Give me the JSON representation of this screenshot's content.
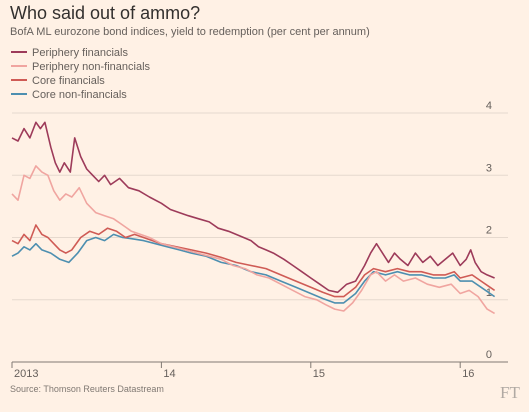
{
  "colors": {
    "periphery_financials": "#9d3b5a",
    "periphery_non_financials": "#f0a5a0",
    "core_financials": "#cf5b55",
    "core_non_financials": "#4d8fb0"
  },
  "chart_data": {
    "type": "line",
    "title": "Who said out of ammo?",
    "subtitle": "BofA ML eurozone bond indices, yield to redemption (per cent per annum)",
    "xlabel": "",
    "ylabel": "",
    "ylim": [
      0,
      4
    ],
    "xlim": [
      2013.0,
      2016.32
    ],
    "x_ticks": [
      {
        "value": 2013.0,
        "label": "2013"
      },
      {
        "value": 2014.0,
        "label": "14"
      },
      {
        "value": 2015.0,
        "label": "15"
      },
      {
        "value": 2016.0,
        "label": "16"
      }
    ],
    "y_ticks": [
      0,
      1,
      2,
      3,
      4
    ],
    "grid": true,
    "legend": "top-left",
    "source": "Source: Thomson Reuters Datastream",
    "brand": "FT",
    "series": [
      {
        "name": "Periphery financials",
        "color": "#9d3b5a",
        "points": [
          [
            2013.0,
            3.6
          ],
          [
            2013.04,
            3.55
          ],
          [
            2013.08,
            3.75
          ],
          [
            2013.12,
            3.6
          ],
          [
            2013.16,
            3.85
          ],
          [
            2013.19,
            3.75
          ],
          [
            2013.22,
            3.85
          ],
          [
            2013.26,
            3.45
          ],
          [
            2013.29,
            3.2
          ],
          [
            2013.32,
            3.05
          ],
          [
            2013.35,
            3.2
          ],
          [
            2013.39,
            3.05
          ],
          [
            2013.42,
            3.6
          ],
          [
            2013.46,
            3.3
          ],
          [
            2013.5,
            3.1
          ],
          [
            2013.54,
            3.0
          ],
          [
            2013.58,
            2.9
          ],
          [
            2013.62,
            3.0
          ],
          [
            2013.66,
            2.85
          ],
          [
            2013.72,
            2.95
          ],
          [
            2013.78,
            2.8
          ],
          [
            2013.85,
            2.75
          ],
          [
            2013.92,
            2.65
          ],
          [
            2014.0,
            2.55
          ],
          [
            2014.06,
            2.45
          ],
          [
            2014.12,
            2.4
          ],
          [
            2014.18,
            2.35
          ],
          [
            2014.25,
            2.3
          ],
          [
            2014.32,
            2.25
          ],
          [
            2014.38,
            2.15
          ],
          [
            2014.45,
            2.1
          ],
          [
            2014.5,
            2.05
          ],
          [
            2014.55,
            2.0
          ],
          [
            2014.6,
            1.95
          ],
          [
            2014.65,
            1.85
          ],
          [
            2014.7,
            1.8
          ],
          [
            2014.75,
            1.75
          ],
          [
            2014.82,
            1.65
          ],
          [
            2014.88,
            1.55
          ],
          [
            2014.94,
            1.45
          ],
          [
            2015.0,
            1.35
          ],
          [
            2015.06,
            1.25
          ],
          [
            2015.12,
            1.15
          ],
          [
            2015.18,
            1.12
          ],
          [
            2015.24,
            1.25
          ],
          [
            2015.3,
            1.3
          ],
          [
            2015.36,
            1.55
          ],
          [
            2015.4,
            1.75
          ],
          [
            2015.44,
            1.9
          ],
          [
            2015.48,
            1.75
          ],
          [
            2015.52,
            1.6
          ],
          [
            2015.56,
            1.75
          ],
          [
            2015.6,
            1.65
          ],
          [
            2015.65,
            1.55
          ],
          [
            2015.7,
            1.75
          ],
          [
            2015.75,
            1.6
          ],
          [
            2015.8,
            1.7
          ],
          [
            2015.85,
            1.55
          ],
          [
            2015.9,
            1.65
          ],
          [
            2015.95,
            1.75
          ],
          [
            2016.0,
            1.55
          ],
          [
            2016.04,
            1.65
          ],
          [
            2016.07,
            1.8
          ],
          [
            2016.1,
            1.6
          ],
          [
            2016.14,
            1.45
          ],
          [
            2016.18,
            1.4
          ],
          [
            2016.23,
            1.35
          ]
        ]
      },
      {
        "name": "Periphery non-financials",
        "color": "#f0a5a0",
        "points": [
          [
            2013.0,
            2.7
          ],
          [
            2013.04,
            2.6
          ],
          [
            2013.08,
            3.0
          ],
          [
            2013.12,
            2.95
          ],
          [
            2013.16,
            3.15
          ],
          [
            2013.2,
            3.05
          ],
          [
            2013.24,
            3.0
          ],
          [
            2013.28,
            2.75
          ],
          [
            2013.32,
            2.6
          ],
          [
            2013.36,
            2.7
          ],
          [
            2013.4,
            2.65
          ],
          [
            2013.45,
            2.8
          ],
          [
            2013.5,
            2.55
          ],
          [
            2013.56,
            2.4
          ],
          [
            2013.62,
            2.35
          ],
          [
            2013.68,
            2.3
          ],
          [
            2013.74,
            2.2
          ],
          [
            2013.8,
            2.1
          ],
          [
            2013.86,
            2.05
          ],
          [
            2013.92,
            2.0
          ],
          [
            2014.0,
            1.9
          ],
          [
            2014.08,
            1.85
          ],
          [
            2014.16,
            1.8
          ],
          [
            2014.24,
            1.75
          ],
          [
            2014.32,
            1.7
          ],
          [
            2014.4,
            1.65
          ],
          [
            2014.48,
            1.55
          ],
          [
            2014.56,
            1.5
          ],
          [
            2014.64,
            1.4
          ],
          [
            2014.72,
            1.35
          ],
          [
            2014.8,
            1.25
          ],
          [
            2014.88,
            1.15
          ],
          [
            2014.96,
            1.05
          ],
          [
            2015.04,
            1.0
          ],
          [
            2015.1,
            0.92
          ],
          [
            2015.16,
            0.85
          ],
          [
            2015.22,
            0.82
          ],
          [
            2015.28,
            0.95
          ],
          [
            2015.34,
            1.15
          ],
          [
            2015.4,
            1.4
          ],
          [
            2015.44,
            1.45
          ],
          [
            2015.5,
            1.3
          ],
          [
            2015.56,
            1.4
          ],
          [
            2015.62,
            1.3
          ],
          [
            2015.7,
            1.35
          ],
          [
            2015.78,
            1.25
          ],
          [
            2015.86,
            1.2
          ],
          [
            2015.94,
            1.25
          ],
          [
            2016.0,
            1.1
          ],
          [
            2016.06,
            1.15
          ],
          [
            2016.12,
            1.05
          ],
          [
            2016.18,
            0.85
          ],
          [
            2016.23,
            0.78
          ]
        ]
      },
      {
        "name": "Core financials",
        "color": "#cf5b55",
        "points": [
          [
            2013.0,
            1.95
          ],
          [
            2013.04,
            1.9
          ],
          [
            2013.08,
            2.05
          ],
          [
            2013.12,
            1.95
          ],
          [
            2013.16,
            2.2
          ],
          [
            2013.2,
            2.05
          ],
          [
            2013.24,
            2.0
          ],
          [
            2013.28,
            1.9
          ],
          [
            2013.32,
            1.8
          ],
          [
            2013.36,
            1.75
          ],
          [
            2013.4,
            1.8
          ],
          [
            2013.46,
            2.0
          ],
          [
            2013.52,
            2.1
          ],
          [
            2013.58,
            2.05
          ],
          [
            2013.64,
            2.15
          ],
          [
            2013.7,
            2.1
          ],
          [
            2013.76,
            2.0
          ],
          [
            2013.82,
            2.05
          ],
          [
            2013.88,
            2.0
          ],
          [
            2013.94,
            1.95
          ],
          [
            2014.0,
            1.9
          ],
          [
            2014.1,
            1.85
          ],
          [
            2014.2,
            1.8
          ],
          [
            2014.3,
            1.75
          ],
          [
            2014.4,
            1.68
          ],
          [
            2014.5,
            1.6
          ],
          [
            2014.6,
            1.55
          ],
          [
            2014.7,
            1.5
          ],
          [
            2014.8,
            1.4
          ],
          [
            2014.9,
            1.3
          ],
          [
            2015.0,
            1.2
          ],
          [
            2015.08,
            1.12
          ],
          [
            2015.16,
            1.05
          ],
          [
            2015.22,
            1.05
          ],
          [
            2015.3,
            1.2
          ],
          [
            2015.36,
            1.4
          ],
          [
            2015.42,
            1.5
          ],
          [
            2015.5,
            1.45
          ],
          [
            2015.58,
            1.5
          ],
          [
            2015.66,
            1.45
          ],
          [
            2015.74,
            1.45
          ],
          [
            2015.82,
            1.4
          ],
          [
            2015.9,
            1.4
          ],
          [
            2015.96,
            1.45
          ],
          [
            2016.0,
            1.35
          ],
          [
            2016.08,
            1.4
          ],
          [
            2016.14,
            1.3
          ],
          [
            2016.2,
            1.2
          ],
          [
            2016.23,
            1.15
          ]
        ]
      },
      {
        "name": "Core non-financials",
        "color": "#4d8fb0",
        "points": [
          [
            2013.0,
            1.7
          ],
          [
            2013.04,
            1.75
          ],
          [
            2013.08,
            1.85
          ],
          [
            2013.12,
            1.8
          ],
          [
            2013.16,
            1.9
          ],
          [
            2013.2,
            1.8
          ],
          [
            2013.26,
            1.75
          ],
          [
            2013.32,
            1.65
          ],
          [
            2013.38,
            1.6
          ],
          [
            2013.44,
            1.75
          ],
          [
            2013.5,
            1.95
          ],
          [
            2013.56,
            2.0
          ],
          [
            2013.62,
            1.95
          ],
          [
            2013.68,
            2.05
          ],
          [
            2013.74,
            2.0
          ],
          [
            2013.8,
            1.98
          ],
          [
            2013.88,
            1.95
          ],
          [
            2013.96,
            1.9
          ],
          [
            2014.04,
            1.85
          ],
          [
            2014.12,
            1.8
          ],
          [
            2014.2,
            1.75
          ],
          [
            2014.3,
            1.7
          ],
          [
            2014.4,
            1.6
          ],
          [
            2014.5,
            1.55
          ],
          [
            2014.6,
            1.45
          ],
          [
            2014.7,
            1.4
          ],
          [
            2014.8,
            1.3
          ],
          [
            2014.9,
            1.2
          ],
          [
            2015.0,
            1.1
          ],
          [
            2015.08,
            1.02
          ],
          [
            2015.16,
            0.95
          ],
          [
            2015.22,
            0.95
          ],
          [
            2015.3,
            1.1
          ],
          [
            2015.36,
            1.3
          ],
          [
            2015.42,
            1.45
          ],
          [
            2015.5,
            1.4
          ],
          [
            2015.58,
            1.45
          ],
          [
            2015.66,
            1.4
          ],
          [
            2015.74,
            1.4
          ],
          [
            2015.82,
            1.35
          ],
          [
            2015.9,
            1.35
          ],
          [
            2015.96,
            1.4
          ],
          [
            2016.0,
            1.3
          ],
          [
            2016.08,
            1.3
          ],
          [
            2016.14,
            1.2
          ],
          [
            2016.2,
            1.1
          ],
          [
            2016.23,
            1.05
          ]
        ]
      }
    ]
  }
}
